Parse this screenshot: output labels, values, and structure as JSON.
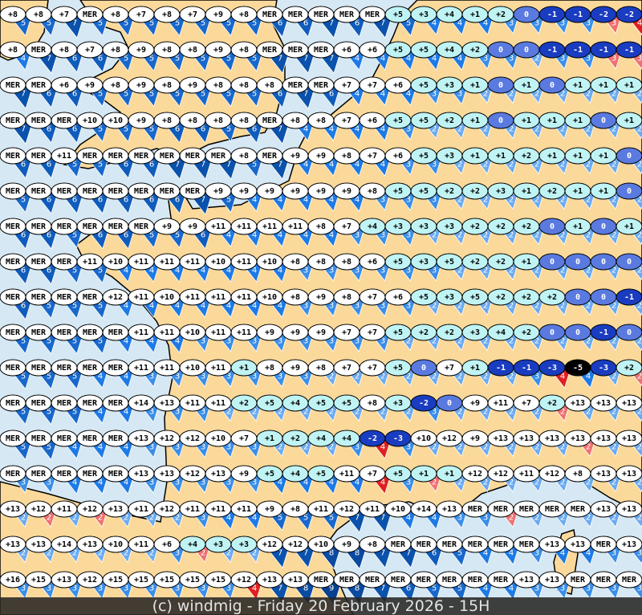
{
  "footer": {
    "text": "(c) windmig - Friday 20 February 2026 - 15H"
  },
  "colors": {
    "sea": "#d6e8f4",
    "land": "#fbd99b",
    "coast": "#000000",
    "wind": {
      "1": "#8cc0f4",
      "2": "#6aaaf0",
      "3": "#3a8ee8",
      "4": "#1d7ae6",
      "5": "#1868cc",
      "6": "#0f5cbc",
      "7": "#0a52ac",
      "8": "#0a4aa0",
      "9": "#08418f"
    },
    "wind_alert_strong": "#e02020",
    "wind_alert_light": "#f07070",
    "temp_warm": "#ffffff",
    "temp_mild": "#c0f4f4",
    "temp_zero": "#5a7ae0",
    "temp_negative": "#1a3cc0",
    "temp_very_cold": "#000000"
  },
  "legend_note": "",
  "stations": [
    "+8/5 +8/5 +7/7 MER/5 +8/5 +7/5 +8/5 +7/5 +9/5 +8/5 MER/6 MER/6 MER/7 MER/6 MER/7 +5/5 +3/4 +4/4 +1/4 +2/3 0/3 -1/3 -1/3 -2/r3 -2/r4",
    "+8/4 MER/7 +8/6 +7/6 +8/5 +9/5 +8/5 +8/5 +9/5 +8/5 MER/7 MER/7 MER/7 +6/4 +6/4 +5/4 +5/4 +4/4 +2/3 0/3 0/2 -1/3 -1/3 -1/r3 -1/r3",
    "MER/7 MER/6 +6/6 +9/5 +8/5 +9/5 +8/5 +9/5 +8/5 +8/5 +8/6 MER/7 MER/6 +7/4 +7/4 +6/4 +5/3 +3/3 +1/2 0/2 +1/2 0/2 +1/2 +1/2 +1/2",
    "MER/7 MER/6 MER/6 +10/5 +10/5 +9/5 +8/6 +8/6 +8/5 +8/6 MER/7 +8/4 +8/4 +7/4 +6/4 +5/3 +5/2 +2/2 +1/2 0/2 +1/2 +1/2 +1/2 0/2 +1/2",
    "MER/6 MER/6 +11/5 MER/5 MER/6 MER/6 MER/7 MER/7 MER/7 +8/5 MER/7 +9/4 +9/4 +8/4 +7/4 +6/3 +5/3 +3/2 +1/2 +1/2 +2/2 +1/2 +1/2 +1/2 0/2",
    "MER/5 MER/6 MER/6 MER/6 MER/6 MER/6 MER/6 MER/7 +9/5 +9/4 +9/4 +9/4 +9/4 +9/4 +8/3 +5/3 +5/3 +2/2 +2/2 +3/2 +1/2 +2/2 +1/2 +1/2 0/2",
    "MER/6 MER/6 MER/5 MER/6 MER/6 MER/5 +9/5 +9/6 +11/4 +11/4 +11/4 +11/4 +8/4 +7/3 +4/3 +3/3 +3/2 +3/2 +2/2 +2/2 +2/2 0/2 +1/2 0/2 +1/2",
    "MER/6 MER/6 MER/5 +11/5 +10/4 +11/4 +11/4 +11/4 +10/4 +11/4 +10/4 +8/3 +8/3 +8/3 +6/3 +5/3 +3/3 +5/2 +2/2 +2/2 +1/2 0/2 0/2 0/2 0/2",
    "MER/6 MER/5 MER/5 MER/5 +12/4 +11/4 +10/4 +11/4 +11/4 +11/4 +10/4 +8/3 +9/3 +8/3 +7/3 +6/3 +5/2 +3/2 +5/2 +2/2 +2/2 +2/2 0/2 0/2 -1/2",
    "MER/5 MER/5 MER/5 MER/5 MER/4 +11/4 +11/4 +10/3 +11/3 +11/3 +9/3 +9/3 +9/3 +7/3 +7/3 +5/2 +2/2 +2/2 +3/2 +4/2 +2/2 0/2 0/2 -1/2 0/2",
    "MER/5 MER/5 MER/5 MER/4 MER/4 +11/3 +11/3 +10/3 +11/3 +1/3 +8/3 +9/3 +8/2 +7/2 +7/2 +5/2 0/2 +7/2 +1/2 -1/2 -1/3 -3/r4 -5/4 -3/2 +2/r2",
    "MER/5 MER/5 MER/5 MER/4 MER/4 +14/3 +13/3 +11/3 +11/2 +2/2 +5/2 +4/2 +5/2 +5/2 +8/2 +3/2 -2/3 0/2 +9/2 +11/2 +7/2 +2/r2 +13/2 +13/2 +13/2",
    "MER/5 MER/5 MER/4 MER/4 MER/4 +13/3 +12/3 +12/3 +10/3 +7/3 +1/2 +2/2 +4/2 +4/3 -2/r4 -3/3 +10/2 +12/2 +9/2 +13/2 +13/2 +13/2 +13/r2 +13/2 +13/2",
    "MER/3 MER/3 MER/4 MER/4 MER/4 +13/3 +13/3 +12/3 +13/3 +9/3 +5/4 +4/4 +5/4 +11/4 +7/r4 +5/3 +1/r2 +1/2 +12/2 +12/2 +11/2 +12/2 +8/2 +13/2 +13/2",
    "+13/2 +12/r2 +11/2 +12/r2 +13/2 +11/2 +12/2 +11/3 +11/4 +11/4 +9/5 +8/5 +11/5 +12/7 +11/7 +10/4 +14/4 +13/3 MER/3 MER/r2 MER/2 MER/2 MER/2 +13/2 +13/2",
    "+13/2 +13/2 +14/2 +13/2 +10/2 +11/2 +6/3 +4/r2 +3/2 +3/2 +12/7 +12/7 +10/8 +9/8 +8/7 MER/7 MER/6 MER/5 MER/4 MER/4 MER/3 +13/4 +13/4 MER/3 +13/3",
    "+16/3 +15/3 +13/3 +12/3 +15/3 +15/3 +15/3 +15/3 +15/3 +12/r4 +13/7 +13/8 MER/9 MER/8 MER/7 MER/6 MER/5 MER/5 MER/4 MER/4 +13/3 +13/3 MER/3 MER/3 MER/3"
  ]
}
